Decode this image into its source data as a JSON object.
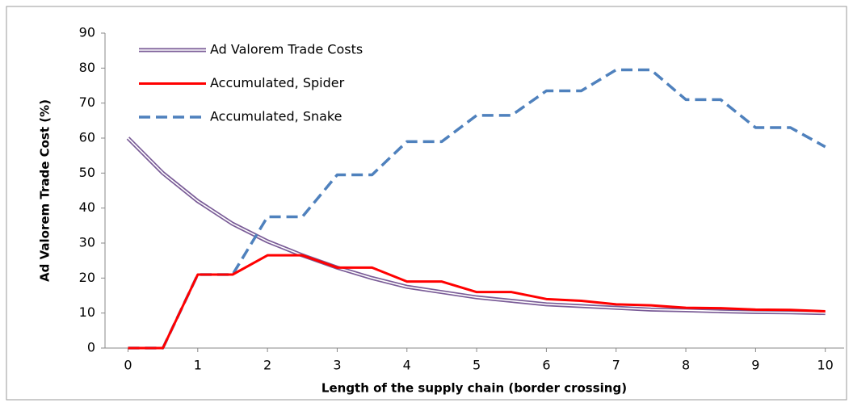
{
  "chart_data": {
    "type": "line",
    "x_label": "Length of the supply chain (border crossing)",
    "y_label": "Ad Valorem Trade Cost (%)",
    "x": [
      0,
      0.5,
      1,
      1.5,
      2,
      2.5,
      3,
      3.5,
      4,
      4.5,
      5,
      5.5,
      6,
      6.5,
      7,
      7.5,
      8,
      8.5,
      9,
      9.5,
      10
    ],
    "series": [
      {
        "name": "Ad Valorem Trade Costs",
        "color": "#7a5c97",
        "style": "double",
        "values": [
          60,
          50,
          42,
          35.5,
          30.5,
          26.5,
          23,
          20,
          17.5,
          16,
          14.5,
          13.5,
          12.5,
          12,
          11.5,
          11,
          10.8,
          10.5,
          10.3,
          10.2,
          10
        ]
      },
      {
        "name": "Accumulated, Spider",
        "color": "#ff0000",
        "style": "solid",
        "values": [
          0,
          0,
          21,
          21,
          26.5,
          26.5,
          23,
          23,
          19,
          19,
          16,
          16,
          14,
          13.5,
          12.5,
          12.2,
          11.5,
          11.4,
          11,
          10.9,
          10.5
        ]
      },
      {
        "name": "Accumulated, Snake",
        "color": "#4f81bd",
        "style": "dashed",
        "values": [
          0,
          0,
          21,
          21,
          37.5,
          37.5,
          49.5,
          49.5,
          59,
          59,
          66.5,
          66.5,
          73.5,
          73.5,
          79.5,
          79.5,
          71,
          71,
          63,
          63,
          57.5
        ]
      }
    ],
    "xlim": [
      -0.33,
      10.27
    ],
    "xticks": [
      0,
      1,
      2,
      3,
      4,
      5,
      6,
      7,
      8,
      9,
      10
    ],
    "ylim": [
      0,
      90
    ],
    "yticks": [
      0,
      10,
      20,
      30,
      40,
      50,
      60,
      70,
      80,
      90
    ],
    "grid": false,
    "legend": "upper left"
  }
}
